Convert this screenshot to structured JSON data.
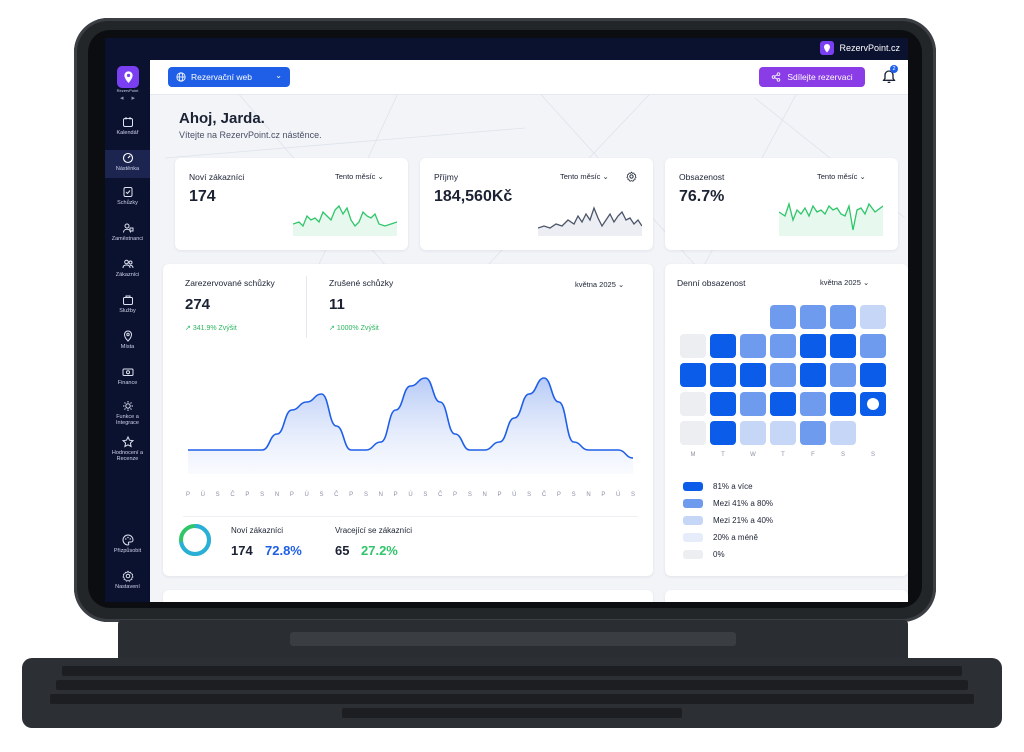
{
  "status": {
    "brand": "RezervPoint.cz"
  },
  "sidebar": {
    "logo_text": "RezervPoint",
    "items": [
      {
        "label": "Kalendář",
        "icon": "calendar-icon"
      },
      {
        "label": "Nástěnka",
        "icon": "dashboard-icon"
      },
      {
        "label": "Schůzky",
        "icon": "checklist-icon"
      },
      {
        "label": "Zaměstnanci",
        "icon": "employees-icon"
      },
      {
        "label": "Zákazníci",
        "icon": "customers-icon"
      },
      {
        "label": "Služby",
        "icon": "services-icon"
      },
      {
        "label": "Místa",
        "icon": "location-icon"
      },
      {
        "label": "Finance",
        "icon": "finance-icon"
      },
      {
        "label": "Funkce a Integrace",
        "icon": "integration-icon"
      },
      {
        "label": "Hodnocení a Recenze",
        "icon": "star-icon"
      },
      {
        "label": "Přizpůsobit",
        "icon": "palette-icon"
      },
      {
        "label": "Nastavení",
        "icon": "gear-icon"
      }
    ]
  },
  "topbar": {
    "site_label": "Rezervační web",
    "share_label": "Sdílejte rezervaci",
    "bell_count": "2"
  },
  "greeting": {
    "title": "Ahoj, Jarda.",
    "subtitle": "Vítejte na RezervPoint.cz nástěnce."
  },
  "kpis": [
    {
      "title": "Noví zákazníci",
      "period": "Tento měsíc",
      "value": "174",
      "color": "#2fc66a"
    },
    {
      "title": "Příjmy",
      "period": "Tento měsíc",
      "value": "184,560Kč",
      "color": "#4b5568"
    },
    {
      "title": "Obsazenost",
      "period": "Tento měsíc",
      "value": "76.7%",
      "color": "#2fc66a"
    }
  ],
  "appointments": {
    "booked_title": "Zarezervované schůzky",
    "booked_value": "274",
    "booked_growth": "341.9% Zvýšit",
    "cancelled_title": "Zrušené schůzky",
    "cancelled_value": "11",
    "cancelled_growth": "1000% Zvýšit",
    "period": "května 2025",
    "xlabels": [
      "P",
      "Ú",
      "S",
      "Č",
      "P",
      "S",
      "N",
      "P",
      "Ú",
      "S",
      "Č",
      "P",
      "S",
      "N",
      "P",
      "Ú",
      "S",
      "Č",
      "P",
      "S",
      "N",
      "P",
      "Ú",
      "S",
      "Č",
      "P",
      "S",
      "N",
      "P",
      "Ú",
      "S"
    ],
    "new_customers_label": "Noví zákazníci",
    "new_customers_count": "174",
    "new_customers_pct": "72.8%",
    "returning_label": "Vracející se zákazníci",
    "returning_count": "65",
    "returning_pct": "27.2%"
  },
  "occupancy": {
    "title": "Denní obsazenost",
    "period": "května 2025",
    "day_labels": [
      "M",
      "T",
      "W",
      "T",
      "F",
      "S",
      "S"
    ],
    "legend": [
      {
        "label": "81% a více",
        "color": "#0b5ce8"
      },
      {
        "label": "Mezi 41% a 80%",
        "color": "#6f9bee"
      },
      {
        "label": "Mezi 21% a 40%",
        "color": "#c6d6f7"
      },
      {
        "label": "20% a méně",
        "color": "#e6ecfa"
      },
      {
        "label": "0%",
        "color": "#eceef2"
      }
    ]
  },
  "chart_data": {
    "type": "line",
    "series": [
      {
        "values": [
          3,
          3,
          3,
          3,
          3,
          3,
          5,
          8,
          9,
          10,
          6,
          3,
          3,
          4,
          8,
          11,
          12,
          9,
          5,
          3,
          3,
          4,
          7,
          10,
          12,
          9,
          4,
          3,
          3,
          3,
          2
        ]
      }
    ],
    "ylim": [
      0,
      14
    ]
  }
}
